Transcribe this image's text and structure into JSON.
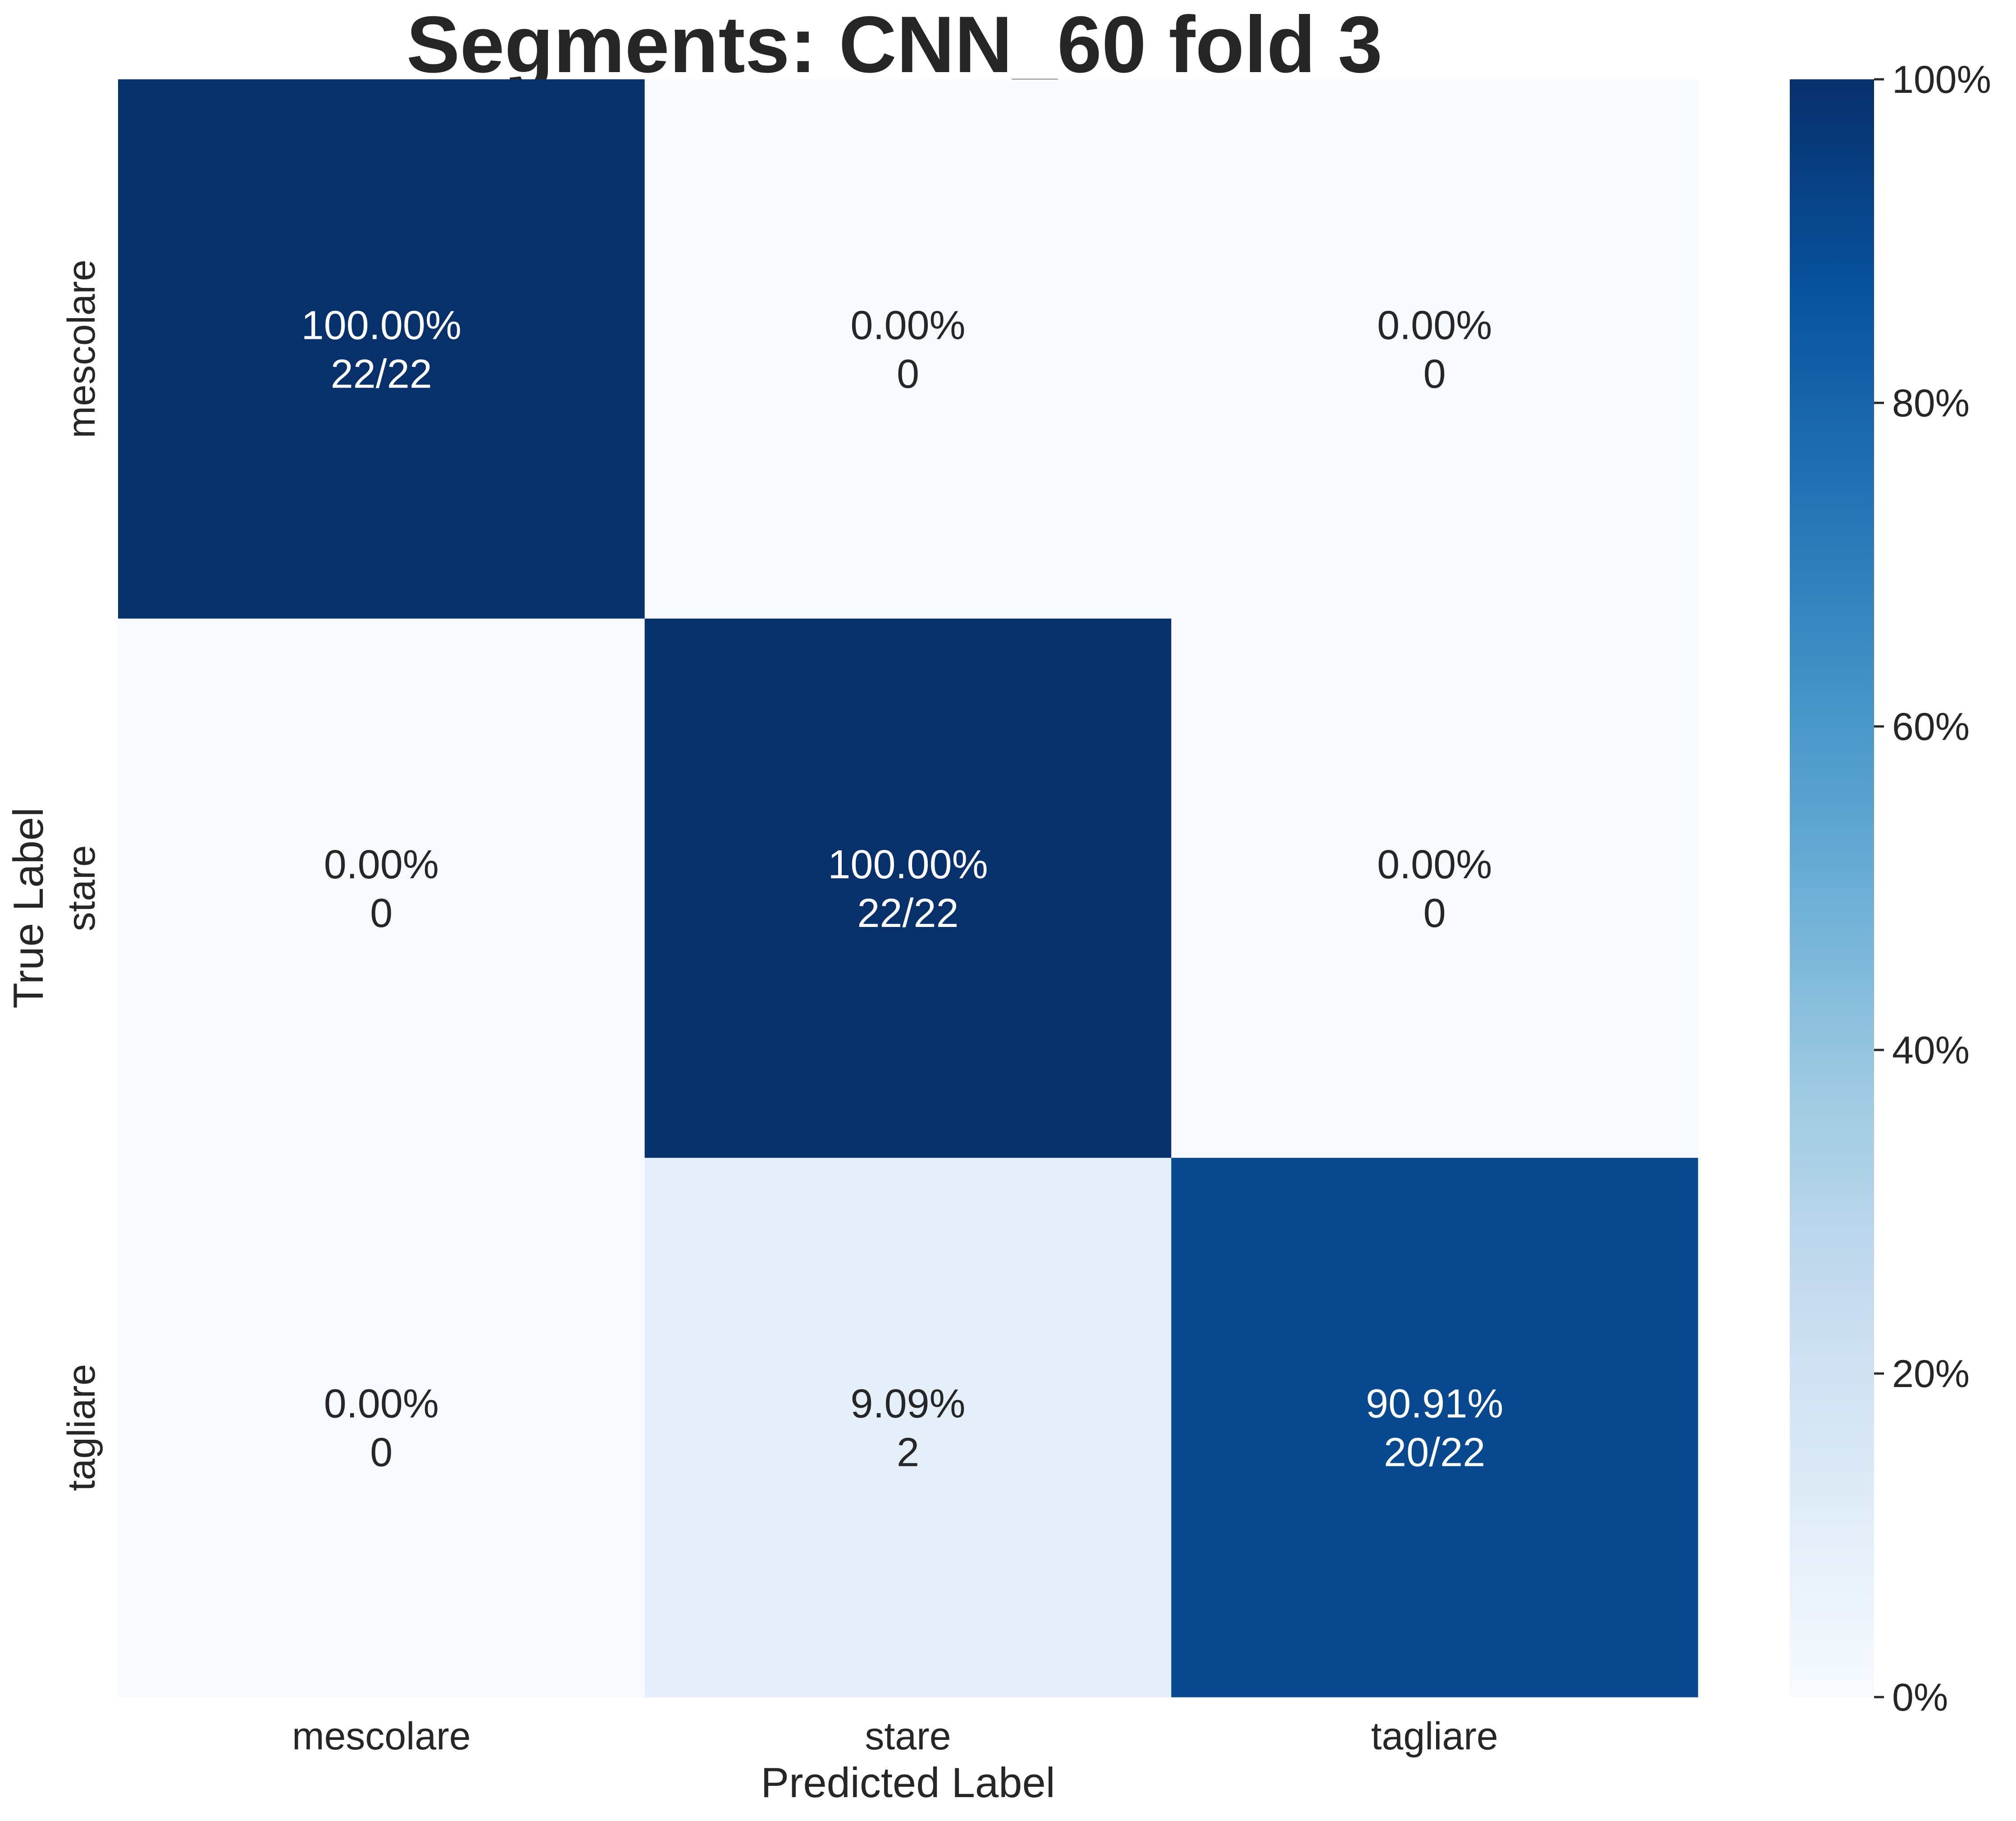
{
  "chart_data": {
    "type": "heatmap",
    "title": "Segments: CNN_60 fold 3",
    "xlabel": "Predicted Label",
    "ylabel": "True Label",
    "x_categories": [
      "mescolare",
      "stare",
      "tagliare"
    ],
    "y_categories": [
      "mescolare",
      "stare",
      "tagliare"
    ],
    "values": [
      [
        100.0,
        0.0,
        0.0
      ],
      [
        0.0,
        100.0,
        0.0
      ],
      [
        0.0,
        9.09,
        90.91
      ]
    ],
    "cell_labels": [
      [
        [
          "100.00%",
          "22/22"
        ],
        [
          "0.00%",
          "0"
        ],
        [
          "0.00%",
          "0"
        ]
      ],
      [
        [
          "0.00%",
          "0"
        ],
        [
          "100.00%",
          "22/22"
        ],
        [
          "0.00%",
          "0"
        ]
      ],
      [
        [
          "0.00%",
          "0"
        ],
        [
          "9.09%",
          "2"
        ],
        [
          "90.91%",
          "20/22"
        ]
      ]
    ],
    "colorbar": {
      "range": [
        0,
        100
      ],
      "ticks": [
        0,
        20,
        40,
        60,
        80,
        100
      ],
      "tick_labels": [
        "0%",
        "20%",
        "40%",
        "60%",
        "80%",
        "100%"
      ],
      "colormap": "Blues"
    },
    "grid": false
  }
}
